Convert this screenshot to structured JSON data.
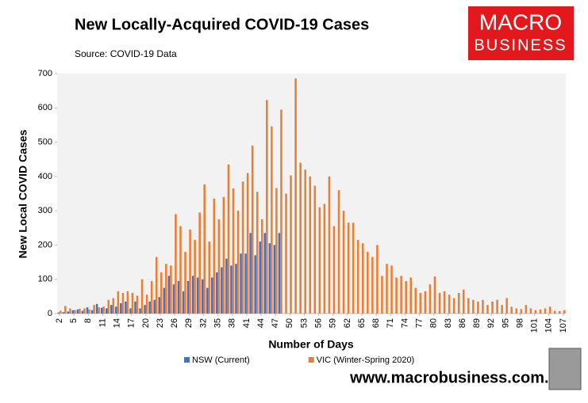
{
  "chart_data": {
    "type": "bar",
    "title": "New Locally-Acquired COVID-19 Cases",
    "subtitle": "Source: COVID-19 Data",
    "x_label": "Number of Days",
    "y_label": "New Local COVID Cases",
    "brand": {
      "line1": "MACRO",
      "line2": "BUSINESS"
    },
    "footer": "www.macrobusiness.com.au",
    "x": [
      2,
      3,
      4,
      5,
      6,
      7,
      8,
      9,
      10,
      11,
      12,
      13,
      14,
      15,
      16,
      17,
      18,
      19,
      20,
      21,
      22,
      23,
      24,
      25,
      26,
      27,
      28,
      29,
      30,
      31,
      32,
      33,
      34,
      35,
      36,
      37,
      38,
      39,
      40,
      41,
      42,
      43,
      44,
      45,
      46,
      47,
      48,
      49,
      50,
      51,
      52,
      53,
      54,
      55,
      56,
      57,
      58,
      59,
      60,
      61,
      62,
      63,
      64,
      65,
      66,
      67,
      68,
      69,
      70,
      71,
      72,
      73,
      74,
      75,
      76,
      77,
      78,
      79,
      80,
      81,
      82,
      83,
      84,
      85,
      86,
      87,
      88,
      89,
      90,
      91,
      92,
      93,
      94,
      95,
      96,
      97,
      98,
      99,
      100,
      101,
      102,
      103,
      104,
      105,
      106,
      107
    ],
    "xlim": [
      1.5,
      107.5
    ],
    "xticks": [
      2,
      5,
      8,
      11,
      14,
      17,
      20,
      23,
      26,
      29,
      32,
      35,
      38,
      41,
      44,
      47,
      50,
      53,
      56,
      59,
      62,
      65,
      68,
      71,
      74,
      77,
      80,
      83,
      86,
      89,
      92,
      95,
      98,
      101,
      104,
      107
    ],
    "ylim": [
      0,
      700
    ],
    "yticks": [
      0,
      100,
      200,
      300,
      400,
      500,
      600,
      700
    ],
    "legend": "bottom",
    "series": [
      {
        "name": "NSW (Current)",
        "color": "#4472c4",
        "values": [
          3,
          4,
          6,
          10,
          12,
          8,
          18,
          10,
          28,
          17,
          15,
          25,
          20,
          30,
          35,
          15,
          35,
          15,
          25,
          35,
          40,
          48,
          75,
          110,
          85,
          95,
          65,
          95,
          110,
          105,
          100,
          75,
          105,
          120,
          135,
          160,
          140,
          145,
          175,
          175,
          235,
          170,
          210,
          235,
          205,
          200,
          235,
          null,
          null,
          null,
          null,
          null,
          null,
          null,
          null,
          null,
          null,
          null,
          null,
          null,
          null,
          null,
          null,
          null,
          null,
          null,
          null,
          null,
          null,
          null,
          null,
          null,
          null,
          null,
          null,
          null,
          null,
          null,
          null,
          null,
          null,
          null,
          null,
          null,
          null,
          null,
          null,
          null,
          null,
          null,
          null,
          null,
          null,
          null,
          null,
          null,
          null,
          null,
          null,
          null,
          null,
          null,
          null,
          null,
          null,
          null
        ]
      },
      {
        "name": "VIC (Winter-Spring 2020)",
        "color": "#ed7d31",
        "values": [
          8,
          22,
          15,
          10,
          14,
          15,
          12,
          25,
          18,
          20,
          40,
          45,
          65,
          60,
          65,
          60,
          52,
          100,
          55,
          95,
          165,
          120,
          145,
          140,
          290,
          255,
          180,
          245,
          215,
          295,
          377,
          210,
          335,
          275,
          340,
          435,
          365,
          300,
          385,
          410,
          490,
          355,
          275,
          623,
          546,
          366,
          595,
          350,
          403,
          686,
          440,
          420,
          400,
          373,
          310,
          320,
          400,
          255,
          360,
          300,
          265,
          265,
          215,
          205,
          180,
          165,
          200,
          110,
          145,
          140,
          105,
          110,
          95,
          105,
          75,
          60,
          65,
          85,
          108,
          60,
          65,
          55,
          45,
          60,
          70,
          45,
          40,
          35,
          40,
          25,
          35,
          40,
          25,
          45,
          20,
          15,
          13,
          25,
          15,
          10,
          12,
          15,
          20,
          8,
          7,
          10
        ]
      }
    ]
  }
}
